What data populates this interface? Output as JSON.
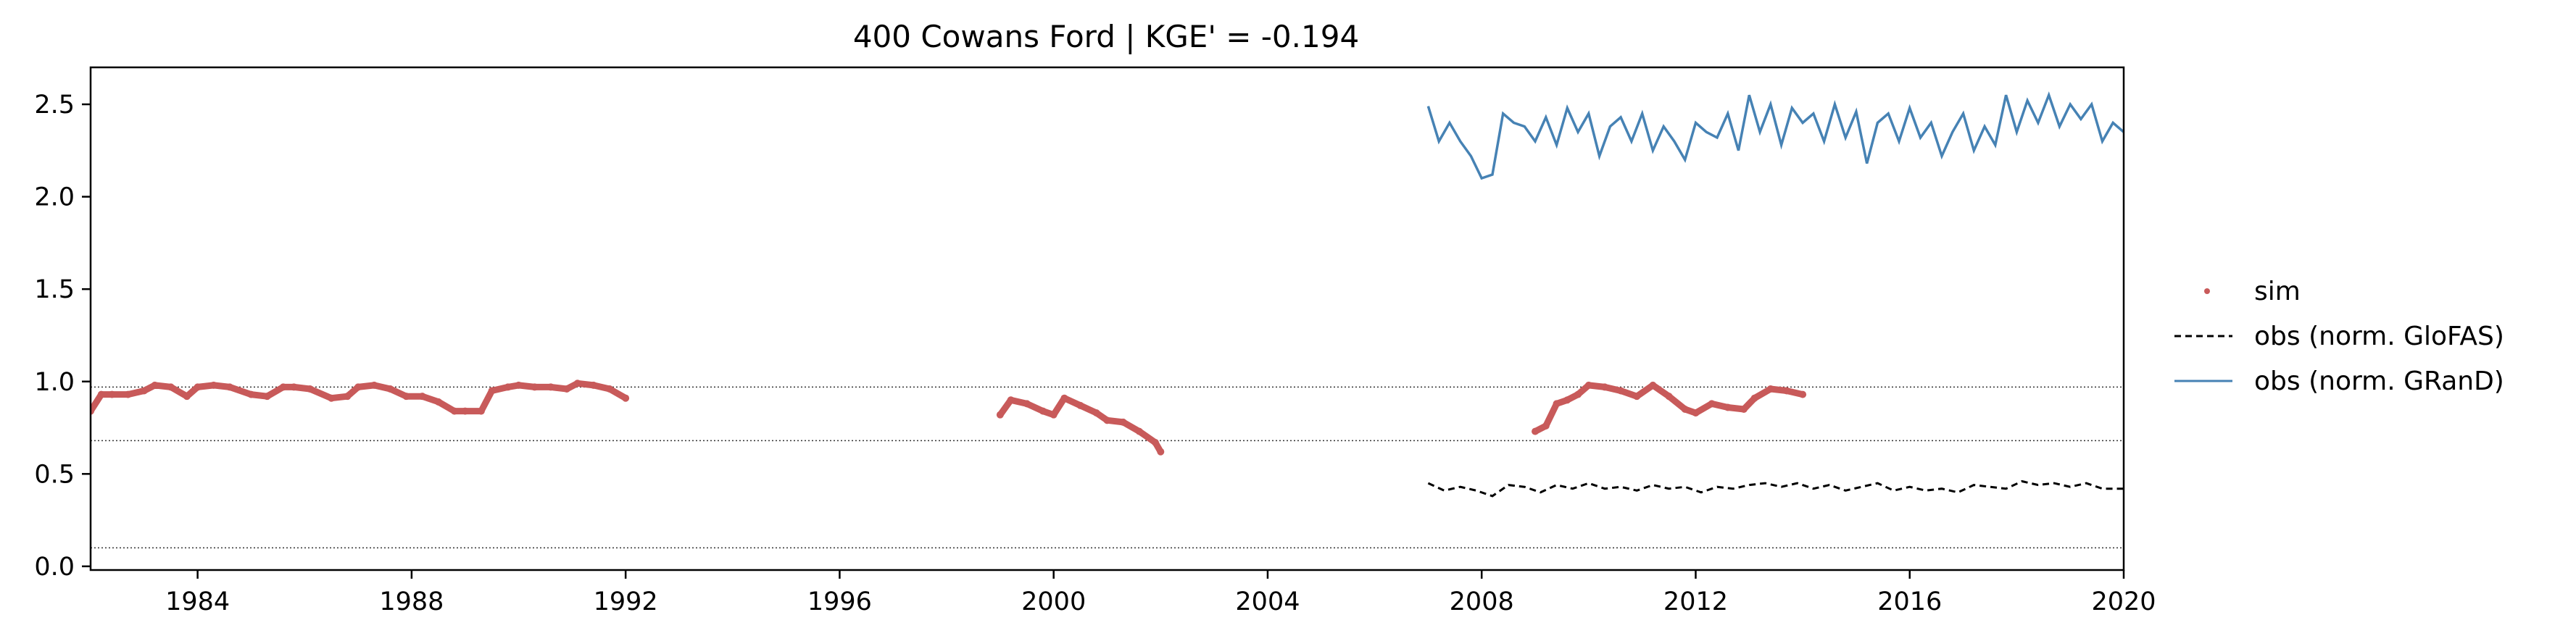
{
  "chart_data": {
    "type": "line",
    "title": "400  Cowans Ford | KGE' = -0.194",
    "xlabel": "",
    "ylabel": "",
    "xlim": [
      1982.0,
      2020.0
    ],
    "ylim": [
      -0.02,
      2.7
    ],
    "x_ticks": [
      "1984",
      "1988",
      "1992",
      "1996",
      "2000",
      "2004",
      "2008",
      "2012",
      "2016",
      "2020"
    ],
    "y_ticks": [
      "0.0",
      "0.5",
      "1.0",
      "1.5",
      "2.0",
      "2.5"
    ],
    "reference_lines": [
      0.1,
      0.68,
      0.97
    ],
    "legend": {
      "placement": "outside-right",
      "entries": [
        "sim",
        "obs (norm. GloFAS)",
        "obs (norm. GRanD)"
      ]
    },
    "series": [
      {
        "name": "sim",
        "style": "points",
        "color": "#c85a5a",
        "segments": [
          {
            "x": [
              1982.0,
              1982.2,
              1982.4,
              1982.7,
              1983.0,
              1983.2,
              1983.5,
              1983.8,
              1984.0,
              1984.3,
              1984.6,
              1985.0,
              1985.3,
              1985.6,
              1985.8,
              1986.1,
              1986.5,
              1986.8,
              1987.0,
              1987.3,
              1987.6,
              1987.9,
              1988.2,
              1988.5,
              1988.8,
              1989.0,
              1989.3,
              1989.5,
              1989.8,
              1990.0,
              1990.3,
              1990.6,
              1990.9,
              1991.1,
              1991.4,
              1991.7,
              1992.0
            ],
            "y": [
              0.84,
              0.93,
              0.93,
              0.93,
              0.95,
              0.98,
              0.97,
              0.92,
              0.97,
              0.98,
              0.97,
              0.93,
              0.92,
              0.97,
              0.97,
              0.96,
              0.91,
              0.92,
              0.97,
              0.98,
              0.96,
              0.92,
              0.92,
              0.89,
              0.84,
              0.84,
              0.84,
              0.95,
              0.97,
              0.98,
              0.97,
              0.97,
              0.96,
              0.99,
              0.98,
              0.96,
              0.91
            ]
          },
          {
            "x": [
              1999.0,
              1999.2,
              1999.5,
              1999.8,
              2000.0,
              2000.2,
              2000.5,
              2000.8,
              2001.0,
              2001.3,
              2001.6,
              2001.9,
              2002.0
            ],
            "y": [
              0.82,
              0.9,
              0.88,
              0.84,
              0.82,
              0.91,
              0.87,
              0.83,
              0.79,
              0.78,
              0.73,
              0.67,
              0.62
            ]
          },
          {
            "x": [
              2009.0,
              2009.2,
              2009.4,
              2009.6,
              2009.8,
              2010.0,
              2010.3,
              2010.6,
              2010.9,
              2011.2,
              2011.5,
              2011.8,
              2012.0,
              2012.3,
              2012.6,
              2012.9,
              2013.1,
              2013.4,
              2013.7,
              2014.0
            ],
            "y": [
              0.73,
              0.76,
              0.88,
              0.9,
              0.93,
              0.98,
              0.97,
              0.95,
              0.92,
              0.98,
              0.92,
              0.85,
              0.83,
              0.88,
              0.86,
              0.85,
              0.91,
              0.96,
              0.95,
              0.93
            ]
          }
        ]
      },
      {
        "name": "obs (norm. GloFAS)",
        "style": "dashed",
        "color": "#000000",
        "x": [
          2007.0,
          2007.3,
          2007.6,
          2007.9,
          2008.2,
          2008.5,
          2008.8,
          2009.1,
          2009.4,
          2009.7,
          2010.0,
          2010.3,
          2010.6,
          2010.9,
          2011.2,
          2011.5,
          2011.8,
          2012.1,
          2012.4,
          2012.7,
          2013.0,
          2013.3,
          2013.6,
          2013.9,
          2014.2,
          2014.5,
          2014.8,
          2015.1,
          2015.4,
          2015.7,
          2016.0,
          2016.3,
          2016.6,
          2016.9,
          2017.2,
          2017.5,
          2017.8,
          2018.1,
          2018.4,
          2018.7,
          2019.0,
          2019.3,
          2019.6,
          2020.0
        ],
        "y": [
          0.45,
          0.41,
          0.43,
          0.41,
          0.38,
          0.44,
          0.43,
          0.4,
          0.44,
          0.42,
          0.45,
          0.42,
          0.43,
          0.41,
          0.44,
          0.42,
          0.43,
          0.4,
          0.43,
          0.42,
          0.44,
          0.45,
          0.43,
          0.45,
          0.42,
          0.44,
          0.41,
          0.43,
          0.45,
          0.41,
          0.43,
          0.41,
          0.42,
          0.4,
          0.44,
          0.43,
          0.42,
          0.46,
          0.44,
          0.45,
          0.43,
          0.45,
          0.42,
          0.42
        ]
      },
      {
        "name": "obs (norm. GRanD)",
        "style": "solid",
        "color": "#4682b4",
        "x": [
          2007.0,
          2007.2,
          2007.4,
          2007.6,
          2007.8,
          2008.0,
          2008.2,
          2008.4,
          2008.6,
          2008.8,
          2009.0,
          2009.2,
          2009.4,
          2009.6,
          2009.8,
          2010.0,
          2010.2,
          2010.4,
          2010.6,
          2010.8,
          2011.0,
          2011.2,
          2011.4,
          2011.6,
          2011.8,
          2012.0,
          2012.2,
          2012.4,
          2012.6,
          2012.8,
          2013.0,
          2013.2,
          2013.4,
          2013.6,
          2013.8,
          2014.0,
          2014.2,
          2014.4,
          2014.6,
          2014.8,
          2015.0,
          2015.2,
          2015.4,
          2015.6,
          2015.8,
          2016.0,
          2016.2,
          2016.4,
          2016.6,
          2016.8,
          2017.0,
          2017.2,
          2017.4,
          2017.6,
          2017.8,
          2018.0,
          2018.2,
          2018.4,
          2018.6,
          2018.8,
          2019.0,
          2019.2,
          2019.4,
          2019.6,
          2019.8,
          2020.0
        ],
        "y": [
          2.49,
          2.3,
          2.4,
          2.3,
          2.22,
          2.1,
          2.12,
          2.45,
          2.4,
          2.38,
          2.3,
          2.43,
          2.28,
          2.48,
          2.35,
          2.45,
          2.22,
          2.38,
          2.43,
          2.3,
          2.45,
          2.25,
          2.38,
          2.3,
          2.2,
          2.4,
          2.35,
          2.32,
          2.45,
          2.25,
          2.55,
          2.35,
          2.5,
          2.28,
          2.48,
          2.4,
          2.45,
          2.3,
          2.5,
          2.32,
          2.46,
          2.18,
          2.4,
          2.45,
          2.3,
          2.48,
          2.32,
          2.4,
          2.22,
          2.35,
          2.45,
          2.25,
          2.38,
          2.28,
          2.55,
          2.35,
          2.52,
          2.4,
          2.55,
          2.38,
          2.5,
          2.42,
          2.5,
          2.3,
          2.4,
          2.35
        ]
      }
    ]
  }
}
